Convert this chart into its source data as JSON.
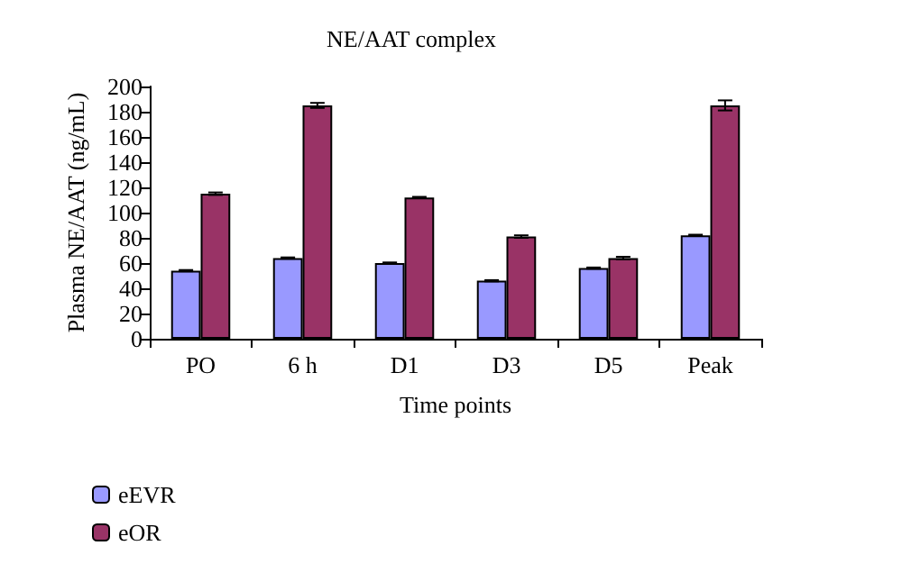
{
  "chart_data": {
    "type": "bar",
    "title": "NE/AAT complex",
    "xlabel": "Time points",
    "ylabel": "Plasma NE/AAT (ng/mL)",
    "categories": [
      "PO",
      "6 h",
      "D1",
      "D3",
      "D5",
      "Peak"
    ],
    "series": [
      {
        "name": "eEVR",
        "color": "#9999ff",
        "values": [
          54,
          64,
          60,
          46,
          56,
          82
        ],
        "errors": [
          0.5,
          0.5,
          0.5,
          0.5,
          0.5,
          0.5
        ]
      },
      {
        "name": "eOR",
        "color": "#993366",
        "values": [
          115,
          185,
          112,
          81,
          64,
          185
        ],
        "errors": [
          1,
          2,
          0.5,
          1,
          1,
          4
        ]
      }
    ],
    "ylim": [
      0,
      200
    ],
    "yticks": [
      0,
      20,
      40,
      60,
      80,
      100,
      120,
      140,
      160,
      180,
      200
    ],
    "grid": false,
    "legend": "bottom left"
  }
}
